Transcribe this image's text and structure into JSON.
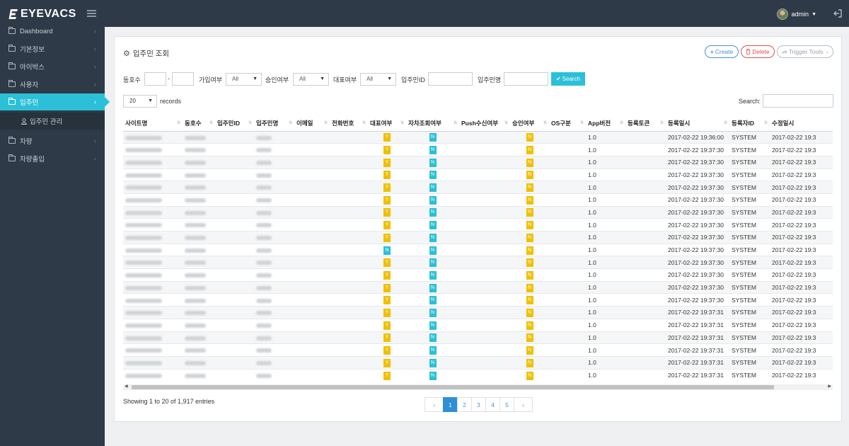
{
  "app": {
    "logo": "EYEVACS",
    "user": "admin"
  },
  "sidebar": {
    "items": [
      {
        "label": "Dashboard"
      },
      {
        "label": "기본정보"
      },
      {
        "label": "아이박스"
      },
      {
        "label": "사용자"
      },
      {
        "label": "입주민",
        "active": true
      },
      {
        "label": "차량"
      },
      {
        "label": "차량출입"
      }
    ],
    "sub_item": "입주민 관리"
  },
  "panel": {
    "title": "입주민 조회",
    "buttons": {
      "create": "Create",
      "delete": "Delete",
      "trigger": "Trigger Tools"
    }
  },
  "filters": {
    "dong_label": "동호수",
    "join_label": "가입여부",
    "join_value": "All",
    "approve_label": "승인여부",
    "approve_value": "All",
    "rep_label": "대표여부",
    "rep_value": "All",
    "resident_id_label": "입주민ID",
    "resident_name_label": "입주민명",
    "search_button": "Search"
  },
  "table_controls": {
    "page_length": "20",
    "records_label": "records",
    "search_label": "Search:"
  },
  "table": {
    "columns": [
      "사이트명",
      "동호수",
      "입주민ID",
      "입주민명",
      "이메일",
      "전화번호",
      "대표여부",
      "자차조회여부",
      "Push수신여부",
      "승인여부",
      "OS구분",
      "App버전",
      "등록토큰",
      "등록일시",
      "등록자ID",
      "수정일시"
    ],
    "rows": [
      {
        "rep": "Y",
        "car": "N",
        "approve": "N",
        "app": "1.0",
        "reg": "2017-02-22 19:36:00",
        "by": "SYSTEM",
        "mod": "2017-02-22 19:3"
      },
      {
        "rep": "Y",
        "car": "N",
        "approve": "N",
        "app": "1.0",
        "reg": "2017-02-22 19:37:30",
        "by": "SYSTEM",
        "mod": "2017-02-22 19:3"
      },
      {
        "rep": "Y",
        "car": "N",
        "approve": "N",
        "app": "1.0",
        "reg": "2017-02-22 19:37:30",
        "by": "SYSTEM",
        "mod": "2017-02-22 19:3"
      },
      {
        "rep": "Y",
        "car": "N",
        "approve": "N",
        "app": "1.0",
        "reg": "2017-02-22 19:37:30",
        "by": "SYSTEM",
        "mod": "2017-02-22 19:3"
      },
      {
        "rep": "Y",
        "car": "N",
        "approve": "N",
        "app": "1.0",
        "reg": "2017-02-22 19:37:30",
        "by": "SYSTEM",
        "mod": "2017-02-22 19:3"
      },
      {
        "rep": "Y",
        "car": "N",
        "approve": "N",
        "app": "1.0",
        "reg": "2017-02-22 19:37:30",
        "by": "SYSTEM",
        "mod": "2017-02-22 19:3"
      },
      {
        "rep": "Y",
        "car": "N",
        "approve": "N",
        "app": "1.0",
        "reg": "2017-02-22 19:37:30",
        "by": "SYSTEM",
        "mod": "2017-02-22 19:3"
      },
      {
        "rep": "Y",
        "car": "N",
        "approve": "N",
        "app": "1.0",
        "reg": "2017-02-22 19:37:30",
        "by": "SYSTEM",
        "mod": "2017-02-22 19:3"
      },
      {
        "rep": "Y",
        "car": "N",
        "approve": "N",
        "app": "1.0",
        "reg": "2017-02-22 19:37:30",
        "by": "SYSTEM",
        "mod": "2017-02-22 19:3"
      },
      {
        "rep": "N",
        "car": "N",
        "approve": "N",
        "app": "1.0",
        "reg": "2017-02-22 19:37:30",
        "by": "SYSTEM",
        "mod": "2017-02-22 19:3"
      },
      {
        "rep": "Y",
        "car": "N",
        "approve": "N",
        "app": "1.0",
        "reg": "2017-02-22 19:37:30",
        "by": "SYSTEM",
        "mod": "2017-02-22 19:3"
      },
      {
        "rep": "Y",
        "car": "N",
        "approve": "N",
        "app": "1.0",
        "reg": "2017-02-22 19:37:30",
        "by": "SYSTEM",
        "mod": "2017-02-22 19:3"
      },
      {
        "rep": "Y",
        "car": "N",
        "approve": "N",
        "app": "1.0",
        "reg": "2017-02-22 19:37:30",
        "by": "SYSTEM",
        "mod": "2017-02-22 19:3"
      },
      {
        "rep": "Y",
        "car": "N",
        "approve": "N",
        "app": "1.0",
        "reg": "2017-02-22 19:37:30",
        "by": "SYSTEM",
        "mod": "2017-02-22 19:3"
      },
      {
        "rep": "Y",
        "car": "N",
        "approve": "N",
        "app": "1.0",
        "reg": "2017-02-22 19:37:31",
        "by": "SYSTEM",
        "mod": "2017-02-22 19:3"
      },
      {
        "rep": "Y",
        "car": "N",
        "approve": "N",
        "app": "1.0",
        "reg": "2017-02-22 19:37:31",
        "by": "SYSTEM",
        "mod": "2017-02-22 19:3"
      },
      {
        "rep": "Y",
        "car": "N",
        "approve": "N",
        "app": "1.0",
        "reg": "2017-02-22 19:37:31",
        "by": "SYSTEM",
        "mod": "2017-02-22 19:3"
      },
      {
        "rep": "Y",
        "car": "N",
        "approve": "N",
        "app": "1.0",
        "reg": "2017-02-22 19:37:31",
        "by": "SYSTEM",
        "mod": "2017-02-22 19:3"
      },
      {
        "rep": "Y",
        "car": "N",
        "approve": "N",
        "app": "1.0",
        "reg": "2017-02-22 19:37:31",
        "by": "SYSTEM",
        "mod": "2017-02-22 19:3"
      },
      {
        "rep": "Y",
        "car": "N",
        "approve": "N",
        "app": "1.0",
        "reg": "2017-02-22 19:37:31",
        "by": "SYSTEM",
        "mod": "2017-02-22 19:3"
      }
    ]
  },
  "footer": {
    "info": "Showing 1 to 20 of 1,917 entries",
    "pages": [
      "1",
      "2",
      "3",
      "4",
      "5"
    ],
    "active_page": "1",
    "prev": "‹",
    "next": "›"
  },
  "colors": {
    "accent": "#2bc0d8",
    "badge_yes": "#f0c000",
    "badge_no": "#2bc0d8",
    "nav_bg": "#2e3a47"
  },
  "icons": [
    "logo-icon",
    "hamburger-icon",
    "avatar",
    "logout-icon",
    "folder-icon",
    "chevron-left-icon",
    "gear-icon",
    "plus-icon",
    "trash-icon",
    "share-icon",
    "check-icon",
    "user-icon"
  ]
}
